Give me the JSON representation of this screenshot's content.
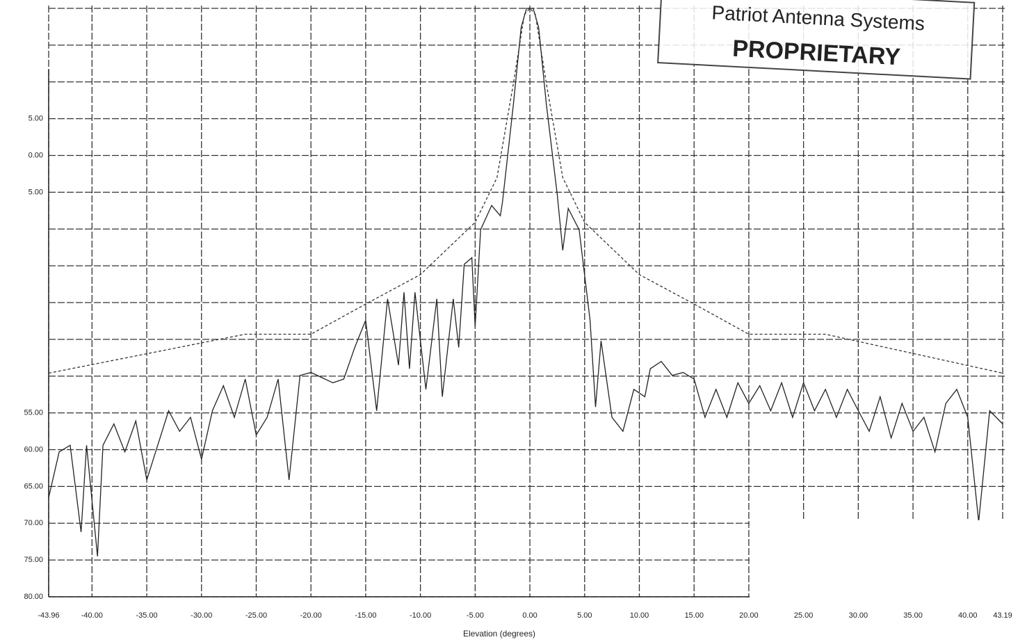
{
  "chart_data": {
    "type": "line",
    "x_label": "Elevation (degrees)",
    "annotations": [
      "Patriot Antenna Systems",
      "PROPRIETARY"
    ],
    "xlim": [
      -43.96,
      43.19
    ],
    "ylim": [
      -80,
      0
    ],
    "xticks": [
      {
        "value": -43.96,
        "label": "-43.96"
      },
      {
        "value": -40,
        "label": "-40.00"
      },
      {
        "value": -35,
        "label": "-35.00"
      },
      {
        "value": -30,
        "label": "-30.00"
      },
      {
        "value": -25,
        "label": "-25.00"
      },
      {
        "value": -20,
        "label": "-20.00"
      },
      {
        "value": -15,
        "label": "-15.00"
      },
      {
        "value": -10,
        "label": "-10.00"
      },
      {
        "value": -5,
        "label": "-5.00"
      },
      {
        "value": 0,
        "label": "0.00"
      },
      {
        "value": 5,
        "label": "5.00"
      },
      {
        "value": 10,
        "label": "10.00"
      },
      {
        "value": 15,
        "label": "15.00"
      },
      {
        "value": 20,
        "label": "20.00"
      },
      {
        "value": 25,
        "label": "25.00"
      },
      {
        "value": 30,
        "label": "30.00"
      },
      {
        "value": 35,
        "label": "35.00"
      },
      {
        "value": 40,
        "label": "40.00"
      },
      {
        "value": 43.19,
        "label": "43.19"
      }
    ],
    "yticks": [
      {
        "value": 0
      },
      {
        "value": -5
      },
      {
        "value": -10
      },
      {
        "value": -15,
        "label": "5.00"
      },
      {
        "value": -20,
        "label": "0.00"
      },
      {
        "value": -25,
        "label": "5.00"
      },
      {
        "value": -30
      },
      {
        "value": -35
      },
      {
        "value": -40
      },
      {
        "value": -45
      },
      {
        "value": -50
      },
      {
        "value": -55,
        "label": "55.00"
      },
      {
        "value": -60,
        "label": "60.00"
      },
      {
        "value": -65,
        "label": "65.00"
      },
      {
        "value": -70,
        "label": "70.00"
      },
      {
        "value": -75,
        "label": "75.00"
      },
      {
        "value": -80,
        "label": "80.00"
      }
    ],
    "grid": true,
    "series": [
      {
        "color": "#222",
        "dash": false,
        "x": [
          -43.96,
          -43,
          -42,
          -41,
          -40.5,
          -39.5,
          -39,
          -38,
          -37,
          -36,
          -35,
          -34,
          -33,
          -32,
          -31,
          -30,
          -29,
          -28,
          -27,
          -26,
          -25,
          -24,
          -23,
          -22,
          -21,
          -20,
          -18,
          -17,
          -16,
          -15,
          -14,
          -13,
          -12,
          -11.5,
          -11,
          -10.5,
          -9.5,
          -8.5,
          -8,
          -7,
          -6.5,
          -6,
          -5.3,
          -5,
          -4.5,
          -3.5,
          -2.7,
          -2.5,
          -1.5,
          -0.8,
          -0.3,
          0.3,
          0.8,
          1.5,
          2.5,
          3,
          3.5,
          4.5,
          5.5,
          6,
          6.5,
          7.5,
          8.5,
          9.5,
          10.5,
          11,
          12,
          13,
          14,
          15,
          16,
          17,
          18,
          19,
          20,
          21,
          22,
          23,
          24,
          25,
          26,
          27,
          28,
          29,
          30,
          31,
          32,
          33,
          34,
          35,
          36,
          37,
          38,
          39,
          40,
          41,
          42,
          43.19
        ],
        "values": [
          -66.5,
          -60.3,
          -59.4,
          -71.2,
          -59.4,
          -74.5,
          -59.4,
          -56.5,
          -60.3,
          -56.1,
          -64.1,
          -59.4,
          -54.7,
          -57.5,
          -55.6,
          -61.3,
          -54.7,
          -51.3,
          -55.6,
          -50.4,
          -58.0,
          -55.6,
          -50.4,
          -64.1,
          -49.9,
          -49.5,
          -50.9,
          -50.4,
          -46.1,
          -42.4,
          -54.7,
          -39.5,
          -48.5,
          -38.6,
          -49.0,
          -38.6,
          -51.8,
          -39.5,
          -52.8,
          -39.5,
          -46.1,
          -34.8,
          -33.9,
          -43.3,
          -30.1,
          -26.8,
          -28.2,
          -26.3,
          -13.0,
          -2.6,
          0,
          0,
          -2.6,
          -13.0,
          -25.3,
          -32.9,
          -27.2,
          -30.1,
          -42.4,
          -54.2,
          -45.2,
          -55.6,
          -57.5,
          -51.8,
          -52.8,
          -49.0,
          -48.0,
          -49.9,
          -49.5,
          -50.4,
          -55.6,
          -51.8,
          -55.6,
          -50.9,
          -53.7,
          -51.3,
          -54.7,
          -50.9,
          -55.6,
          -50.9,
          -54.7,
          -51.8,
          -55.6,
          -51.8,
          -54.7,
          -57.5,
          -52.8,
          -58.4,
          -53.7,
          -57.5,
          -55.6,
          -60.3,
          -53.7,
          -51.8,
          -55.6,
          -69.8,
          -54.7,
          -56.5
        ]
      },
      {
        "color": "#333",
        "dash": true,
        "x": [
          -43.96,
          -26,
          -20,
          -15,
          -10,
          -5,
          -3,
          -1.5,
          -0.5,
          0,
          0.5,
          1.5,
          3,
          5,
          10,
          15,
          20,
          27,
          43.19
        ],
        "values": [
          -49.6,
          -44.3,
          -44.3,
          -40.2,
          -36.2,
          -29.1,
          -23,
          -10.2,
          -0.8,
          0,
          -0.8,
          -10.2,
          -23,
          -29.1,
          -36.2,
          -40.2,
          -44.3,
          -44.3,
          -49.6
        ]
      }
    ]
  }
}
